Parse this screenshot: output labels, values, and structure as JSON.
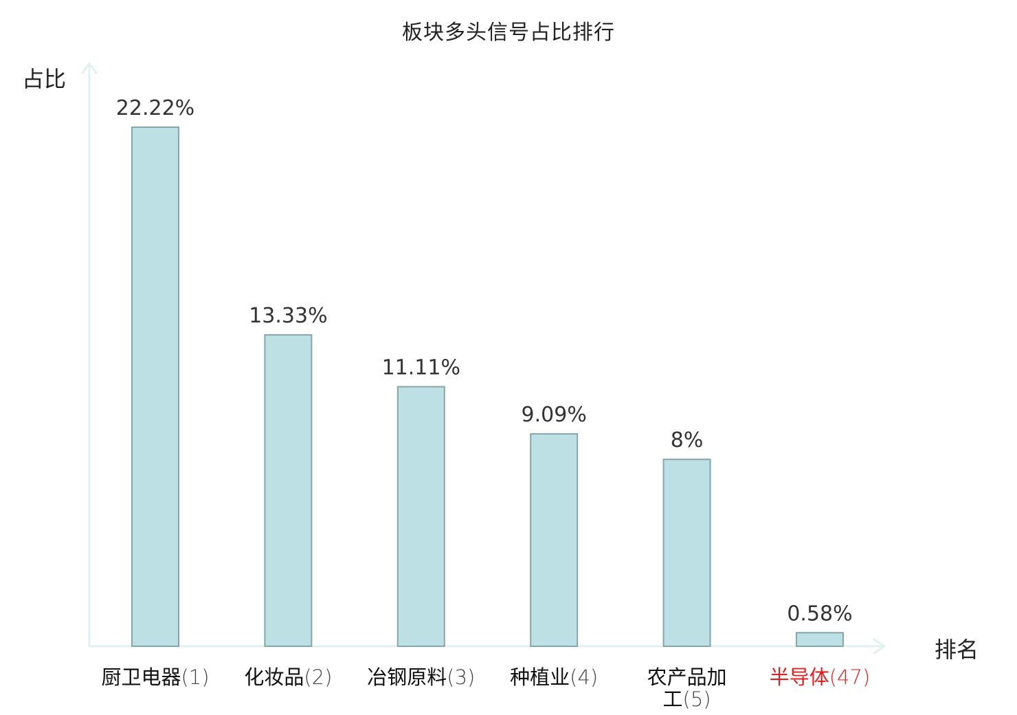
{
  "chart_data": {
    "type": "bar",
    "title": "板块多头信号占比排行",
    "xlabel": "排名",
    "ylabel": "占比",
    "ylim": [
      0,
      24
    ],
    "grid": false,
    "legend": "none",
    "categories": [
      {
        "name": "厨卫电器",
        "rank": "(1)",
        "highlight": false
      },
      {
        "name": "化妆品",
        "rank": "(2)",
        "highlight": false
      },
      {
        "name": "冶钢原料",
        "rank": "(3)",
        "highlight": false
      },
      {
        "name": "种植业",
        "rank": "(4)",
        "highlight": false
      },
      {
        "name": "农产品加工",
        "rank": "(5)",
        "highlight": false
      },
      {
        "name": "半导体",
        "rank": "(47)",
        "highlight": true
      }
    ],
    "values": [
      22.22,
      13.33,
      11.11,
      9.09,
      8,
      0.58
    ],
    "value_labels": [
      "22.22%",
      "13.33%",
      "11.11%",
      "9.09%",
      "8%",
      "0.58%"
    ]
  },
  "colors": {
    "bar_fill": "#bce0e3",
    "bar_stroke": "#86a6a9",
    "axis": "#e0f2ef",
    "text": "#333333",
    "highlight": "#e02020"
  }
}
